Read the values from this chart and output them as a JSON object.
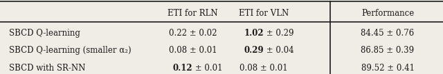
{
  "col_headers": [
    "ETI for RLN",
    "ETI for VLN",
    "Performance"
  ],
  "row_labels": [
    "SBCD Q-learning",
    "SBCD Q-learning (smaller α₂)",
    "SBCD with SR-NN"
  ],
  "cells": [
    [
      "0.22 ± 0.02",
      "1.02 ± 0.29",
      "84.45 ± 0.76"
    ],
    [
      "0.08 ± 0.01",
      "0.29 ± 0.04",
      "86.85 ± 0.39"
    ],
    [
      "0.12 ± 0.01",
      "0.08 ± 0.01",
      "89.52 ± 0.41"
    ]
  ],
  "bold_cells": [
    [
      false,
      true,
      false
    ],
    [
      false,
      true,
      false
    ],
    [
      true,
      false,
      false
    ]
  ],
  "bold_parts": [
    [
      "",
      "1.02",
      ""
    ],
    [
      "",
      "0.29",
      ""
    ],
    [
      "0.12",
      "",
      ""
    ]
  ],
  "background_color": "#f0ede6",
  "text_color": "#1a1a1a",
  "figsize": [
    6.4,
    1.08
  ],
  "dpi": 100
}
